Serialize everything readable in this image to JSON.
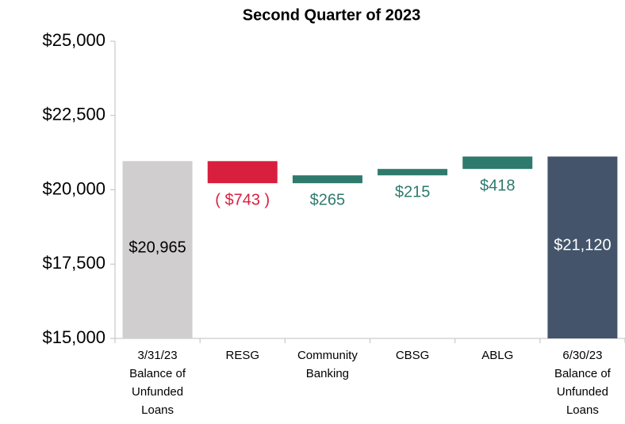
{
  "chart_data": {
    "type": "waterfall",
    "title": "Second Quarter of 2023",
    "categories": [
      "3/31/23\nBalance of\nUnfunded\nLoans",
      "RESG",
      "Community\nBanking",
      "CBSG",
      "ABLG",
      "6/30/23\nBalance of\nUnfunded\nLoans"
    ],
    "values": [
      20965,
      -743,
      265,
      215,
      418,
      21120
    ],
    "value_labels": [
      "$20,965",
      "( $743 )",
      "$265",
      "$215",
      "$418",
      "$21,120"
    ],
    "colors": [
      "#d0cece",
      "#d91f3e",
      "#2e7a6d",
      "#2e7a6d",
      "#2e7a6d",
      "#44546a"
    ],
    "ylim": [
      15000,
      25000
    ],
    "yticks": [
      {
        "value": 15000,
        "label": "$15,000"
      },
      {
        "value": 17500,
        "label": "$17,500"
      },
      {
        "value": 20000,
        "label": "$20,000"
      },
      {
        "value": 22500,
        "label": "$22,500"
      },
      {
        "value": 25000,
        "label": "$25,000"
      }
    ]
  }
}
